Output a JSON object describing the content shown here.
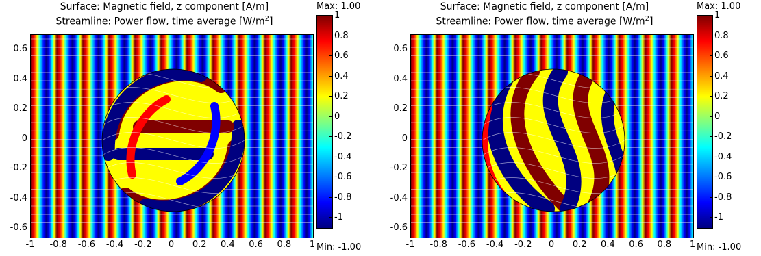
{
  "panels": [
    {
      "title1": "Surface: Magnetic field, z component [A/m]",
      "title2_prefix": "Streamline: Power flow, time average [W/m",
      "title2_sup": "2",
      "title2_suffix": "]",
      "max_label": "Max: 1.00",
      "min_label": "Min: -1.00",
      "variant": "spiral"
    },
    {
      "title1": "Surface: Magnetic field, z component [A/m]",
      "title2_prefix": "Streamline: Power flow, time average [W/m",
      "title2_sup": "2",
      "title2_suffix": "]",
      "max_label": "Max: 1.00",
      "min_label": "Min: -1.00",
      "variant": "s-shape"
    }
  ],
  "y_ticks": [
    "0.6",
    "0.4",
    "0.2",
    "0",
    "-0.2",
    "-0.4",
    "-0.6"
  ],
  "x_ticks": [
    "-1",
    "-0.8",
    "-0.6",
    "-0.4",
    "-0.2",
    "0",
    "0.2",
    "0.4",
    "0.6",
    "0.8",
    "1"
  ],
  "colorbar_ticks": [
    "1",
    "0.8",
    "0.6",
    "0.4",
    "0.2",
    "0",
    "-0.2",
    "-0.4",
    "-0.6",
    "-0.8",
    "-1"
  ],
  "colors": {
    "dark_red": "#800000",
    "red": "#ff0000",
    "yellow": "#ffff00",
    "cyan": "#00ffff",
    "blue": "#0000ff",
    "dark_blue": "#000080"
  }
}
